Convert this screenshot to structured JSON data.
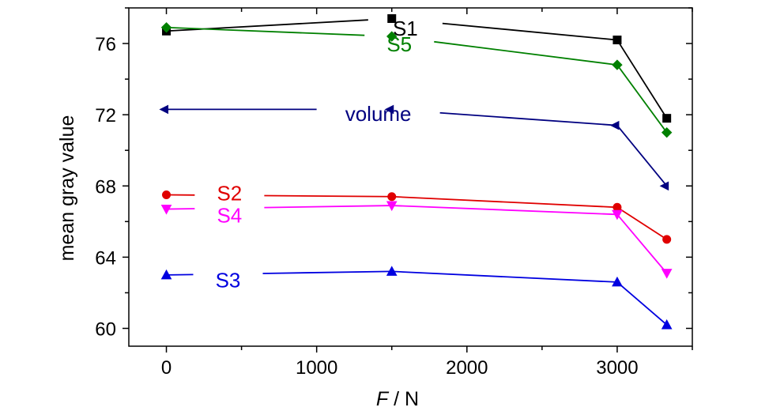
{
  "chart_data": {
    "type": "line",
    "title": "",
    "xlabel_italic": "F",
    "xlabel_rest": " / N",
    "ylabel": "mean gray value",
    "xlim": [
      -250,
      3500
    ],
    "ylim": [
      59,
      78
    ],
    "xticks": [
      0,
      1000,
      2000,
      3000
    ],
    "xtick_labels": [
      "0",
      "1000",
      "2000",
      "3000"
    ],
    "yticks": [
      60,
      64,
      68,
      72,
      76
    ],
    "ytick_labels": [
      "60",
      "64",
      "68",
      "72",
      "76"
    ],
    "grid": false,
    "legend": "inline labels",
    "x": [
      0,
      1500,
      3000,
      3330
    ],
    "series": [
      {
        "name": "S1",
        "color": "#000000",
        "marker": "square",
        "values": [
          76.7,
          77.4,
          76.2,
          71.8
        ]
      },
      {
        "name": "S5",
        "color": "#008000",
        "marker": "diamond",
        "values": [
          76.9,
          76.4,
          74.8,
          71.0
        ]
      },
      {
        "name": "volume",
        "color": "#000080",
        "marker": "arrow-left",
        "values": [
          72.3,
          72.3,
          71.4,
          68.0
        ]
      },
      {
        "name": "S2",
        "color": "#e00000",
        "marker": "circle",
        "values": [
          67.5,
          67.4,
          66.8,
          65.0
        ]
      },
      {
        "name": "S4",
        "color": "#ff00ff",
        "marker": "triangle-down",
        "values": [
          66.7,
          66.9,
          66.4,
          63.1
        ]
      },
      {
        "name": "S3",
        "color": "#0000e0",
        "marker": "triangle-up",
        "values": [
          63.0,
          63.2,
          62.6,
          60.2
        ]
      }
    ]
  }
}
